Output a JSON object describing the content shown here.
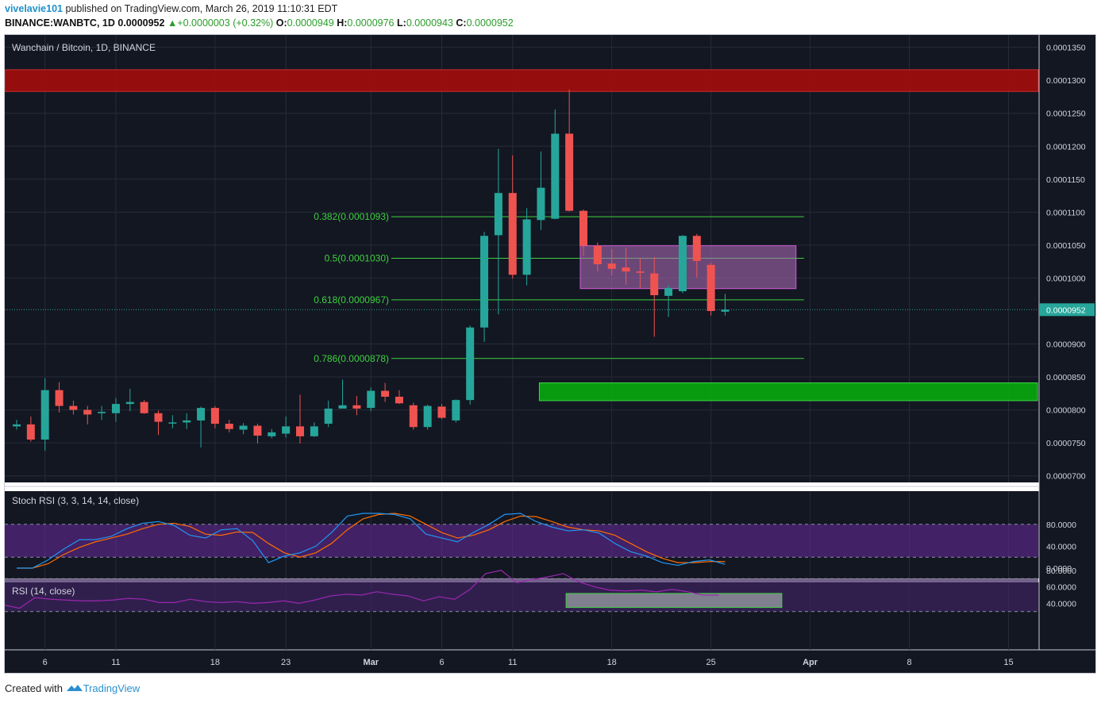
{
  "header": {
    "user": "vivelavie101",
    "published": "published on TradingView.com, March 26, 2019 11:10:31 EDT",
    "symbol": "BINANCE:WANBTC, 1D",
    "price": "0.0000952",
    "change": "+0.0000003 (+0.32%)",
    "o_label": "O:",
    "o_value": "0.0000949",
    "h_label": "H:",
    "h_value": "0.0000976",
    "l_label": "L:",
    "l_value": "0.0000943",
    "c_label": "C:",
    "c_value": "0.0000952"
  },
  "footer": {
    "created_with": "Created with",
    "brand": "TradingView"
  },
  "colors": {
    "background": "#131722",
    "up": "#26a69a",
    "down": "#ef5350",
    "fib": "#3fd13f",
    "resistance": "#9e0d0d",
    "support": "#09a30f",
    "range_box": "#b56fbf",
    "stoch_k": "#2196f3",
    "stoch_d": "#ff6d00",
    "rsi": "#9c27b0",
    "last_price": "#26a69a"
  },
  "chart_data": {
    "type": "candlestick",
    "title": "Wanchain / Bitcoin, 1D, BINANCE",
    "y_ticks": [
      "0.0001350",
      "0.0001300",
      "0.0001250",
      "0.0001200",
      "0.0001150",
      "0.0001100",
      "0.0001050",
      "0.0001000",
      "0.0000900",
      "0.0000850",
      "0.0000800",
      "0.0000750",
      "0.0000700"
    ],
    "ylim": [
      6.9e-05,
      0.000137
    ],
    "x_ticks": [
      {
        "label": "6",
        "index": 2
      },
      {
        "label": "11",
        "index": 7
      },
      {
        "label": "18",
        "index": 14
      },
      {
        "label": "23",
        "index": 19
      },
      {
        "label": "Mar",
        "index": 25
      },
      {
        "label": "6",
        "index": 30
      },
      {
        "label": "11",
        "index": 35
      },
      {
        "label": "18",
        "index": 42
      },
      {
        "label": "25",
        "index": 49
      },
      {
        "label": "Apr",
        "index": 56
      },
      {
        "label": "8",
        "index": 63
      },
      {
        "label": "15",
        "index": 70
      }
    ],
    "last_price": "0.0000952",
    "candles": [
      {
        "o": 7.75e-05,
        "h": 7.85e-05,
        "l": 7.7e-05,
        "c": 7.78e-05
      },
      {
        "o": 7.78e-05,
        "h": 7.9e-05,
        "l": 7.52e-05,
        "c": 7.55e-05
      },
      {
        "o": 7.55e-05,
        "h": 8.48e-05,
        "l": 7.38e-05,
        "c": 8.3e-05
      },
      {
        "o": 8.3e-05,
        "h": 8.42e-05,
        "l": 7.96e-05,
        "c": 8.06e-05
      },
      {
        "o": 8.06e-05,
        "h": 8.14e-05,
        "l": 7.93e-05,
        "c": 8e-05
      },
      {
        "o": 8e-05,
        "h": 8.06e-05,
        "l": 7.78e-05,
        "c": 7.93e-05
      },
      {
        "o": 7.95e-05,
        "h": 8.06e-05,
        "l": 7.85e-05,
        "c": 7.97e-05
      },
      {
        "o": 7.95e-05,
        "h": 8.18e-05,
        "l": 7.82e-05,
        "c": 8.09e-05
      },
      {
        "o": 8.09e-05,
        "h": 8.32e-05,
        "l": 7.98e-05,
        "c": 8.12e-05
      },
      {
        "o": 8.12e-05,
        "h": 8.15e-05,
        "l": 7.94e-05,
        "c": 7.95e-05
      },
      {
        "o": 7.95e-05,
        "h": 7.99e-05,
        "l": 7.62e-05,
        "c": 7.82e-05
      },
      {
        "o": 7.8e-05,
        "h": 7.92e-05,
        "l": 7.72e-05,
        "c": 7.81e-05
      },
      {
        "o": 7.81e-05,
        "h": 7.95e-05,
        "l": 7.71e-05,
        "c": 7.84e-05
      },
      {
        "o": 7.84e-05,
        "h": 8.05e-05,
        "l": 7.43e-05,
        "c": 8.03e-05
      },
      {
        "o": 8.03e-05,
        "h": 8.06e-05,
        "l": 7.72e-05,
        "c": 7.79e-05
      },
      {
        "o": 7.79e-05,
        "h": 7.85e-05,
        "l": 7.66e-05,
        "c": 7.71e-05
      },
      {
        "o": 7.7e-05,
        "h": 7.8e-05,
        "l": 7.63e-05,
        "c": 7.76e-05
      },
      {
        "o": 7.76e-05,
        "h": 7.79e-05,
        "l": 7.49e-05,
        "c": 7.61e-05
      },
      {
        "o": 7.6e-05,
        "h": 7.71e-05,
        "l": 7.57e-05,
        "c": 7.66e-05
      },
      {
        "o": 7.64e-05,
        "h": 7.9e-05,
        "l": 7.58e-05,
        "c": 7.75e-05
      },
      {
        "o": 7.75e-05,
        "h": 8.23e-05,
        "l": 7.49e-05,
        "c": 7.6e-05
      },
      {
        "o": 7.6e-05,
        "h": 7.81e-05,
        "l": 7.59e-05,
        "c": 7.75e-05
      },
      {
        "o": 7.79e-05,
        "h": 8.14e-05,
        "l": 7.74e-05,
        "c": 8.02e-05
      },
      {
        "o": 8.02e-05,
        "h": 8.46e-05,
        "l": 8.02e-05,
        "c": 8.07e-05
      },
      {
        "o": 8.07e-05,
        "h": 8.21e-05,
        "l": 7.92e-05,
        "c": 8.02e-05
      },
      {
        "o": 8.03e-05,
        "h": 8.34e-05,
        "l": 7.98e-05,
        "c": 8.29e-05
      },
      {
        "o": 8.29e-05,
        "h": 8.41e-05,
        "l": 8.12e-05,
        "c": 8.2e-05
      },
      {
        "o": 8.2e-05,
        "h": 8.3e-05,
        "l": 8.09e-05,
        "c": 8.1e-05
      },
      {
        "o": 8.07e-05,
        "h": 8.11e-05,
        "l": 7.7e-05,
        "c": 7.74e-05
      },
      {
        "o": 7.74e-05,
        "h": 8.08e-05,
        "l": 7.7e-05,
        "c": 8.06e-05
      },
      {
        "o": 8.05e-05,
        "h": 8.09e-05,
        "l": 7.86e-05,
        "c": 7.88e-05
      },
      {
        "o": 7.84e-05,
        "h": 8.16e-05,
        "l": 7.81e-05,
        "c": 8.15e-05
      },
      {
        "o": 8.15e-05,
        "h": 9.28e-05,
        "l": 8.08e-05,
        "c": 9.25e-05
      },
      {
        "o": 9.25e-05,
        "h": 0.000107,
        "l": 9.03e-05,
        "c": 0.0001064
      },
      {
        "o": 0.0001065,
        "h": 0.0001196,
        "l": 9.45e-05,
        "c": 0.0001129
      },
      {
        "o": 0.0001129,
        "h": 0.0001186,
        "l": 9.99e-05,
        "c": 0.0001005
      },
      {
        "o": 0.0001005,
        "h": 0.0001106,
        "l": 9.89e-05,
        "c": 0.0001089
      },
      {
        "o": 0.0001088,
        "h": 0.0001192,
        "l": 0.0001073,
        "c": 0.0001137
      },
      {
        "o": 0.000109,
        "h": 0.0001256,
        "l": 0.0001089,
        "c": 0.0001219
      },
      {
        "o": 0.0001219,
        "h": 0.0001286,
        "l": 0.0001101,
        "c": 0.0001102
      },
      {
        "o": 0.0001102,
        "h": 0.0001104,
        "l": 0.0001034,
        "c": 0.0001049
      },
      {
        "o": 0.0001049,
        "h": 0.0001054,
        "l": 0.000101,
        "c": 0.0001021
      },
      {
        "o": 0.0001022,
        "h": 0.0001044,
        "l": 0.0001004,
        "c": 0.0001014
      },
      {
        "o": 0.0001016,
        "h": 0.0001046,
        "l": 9.9e-05,
        "c": 0.000101
      },
      {
        "o": 0.000101,
        "h": 0.000103,
        "l": 9.85e-05,
        "c": 0.0001008
      },
      {
        "o": 0.0001007,
        "h": 0.0001032,
        "l": 9.11e-05,
        "c": 9.74e-05
      },
      {
        "o": 9.73e-05,
        "h": 9.89e-05,
        "l": 9.41e-05,
        "c": 9.85e-05
      },
      {
        "o": 9.8e-05,
        "h": 0.0001065,
        "l": 9.77e-05,
        "c": 0.0001064
      },
      {
        "o": 0.0001064,
        "h": 0.0001067,
        "l": 0.0001001,
        "c": 0.0001026
      },
      {
        "o": 0.000102,
        "h": 0.0001023,
        "l": 9.43e-05,
        "c": 9.5e-05
      },
      {
        "o": 9.49e-05,
        "h": 9.76e-05,
        "l": 9.43e-05,
        "c": 9.52e-05
      }
    ],
    "fib_levels": [
      {
        "label": "0.382(0.0001093)",
        "value": 0.0001093
      },
      {
        "label": "0.5(0.0001030)",
        "value": 0.000103
      },
      {
        "label": "0.618(0.0000967)",
        "value": 9.67e-05
      },
      {
        "label": "0.786(0.0000878)",
        "value": 8.78e-05
      }
    ],
    "fib_range": {
      "start_index": 20,
      "end_index": 55
    },
    "resistance_zone": {
      "low": 0.0001283,
      "high": 0.0001316,
      "start_index": 0
    },
    "support_zone": {
      "low": 8.14e-05,
      "high": 8.41e-05,
      "start_index": 37
    },
    "range_box": {
      "low": 9.84e-05,
      "high": 0.0001049,
      "start_index": 40,
      "end_index": 55
    },
    "stoch_rsi": {
      "label": "Stoch RSI (3, 3, 14, 14, close)",
      "ticks": [
        "80.0000",
        "40.0000",
        "0.0000"
      ],
      "k": [
        0,
        0,
        15,
        35,
        52,
        52,
        58,
        72,
        82,
        85,
        78,
        60,
        55,
        70,
        72,
        50,
        10,
        22,
        28,
        40,
        65,
        95,
        100,
        100,
        98,
        90,
        62,
        55,
        48,
        65,
        80,
        98,
        100,
        85,
        75,
        68,
        70,
        64,
        45,
        30,
        22,
        10,
        5,
        12,
        15,
        7
      ],
      "d": [
        0,
        0,
        8,
        25,
        38,
        48,
        55,
        62,
        72,
        80,
        82,
        76,
        62,
        60,
        66,
        65,
        45,
        28,
        20,
        28,
        45,
        70,
        90,
        98,
        100,
        95,
        80,
        65,
        55,
        60,
        70,
        85,
        95,
        94,
        85,
        75,
        70,
        68,
        60,
        45,
        30,
        18,
        10,
        10,
        12,
        12
      ]
    },
    "rsi": {
      "label": "RSI (14, close)",
      "ticks": [
        "80.0000",
        "60.0000",
        "40.0000"
      ],
      "values": [
        38,
        34,
        47,
        45,
        44,
        43,
        43,
        44,
        46,
        45,
        41,
        41,
        45,
        42,
        41,
        42,
        40,
        41,
        43,
        40,
        44,
        49,
        51,
        50,
        54,
        51,
        49,
        43,
        48,
        45,
        57,
        76,
        80,
        65,
        69,
        72,
        76,
        66,
        60,
        56,
        55,
        56,
        54,
        57,
        54,
        50,
        50
      ],
      "box": {
        "low": 35,
        "high": 52
      }
    }
  }
}
